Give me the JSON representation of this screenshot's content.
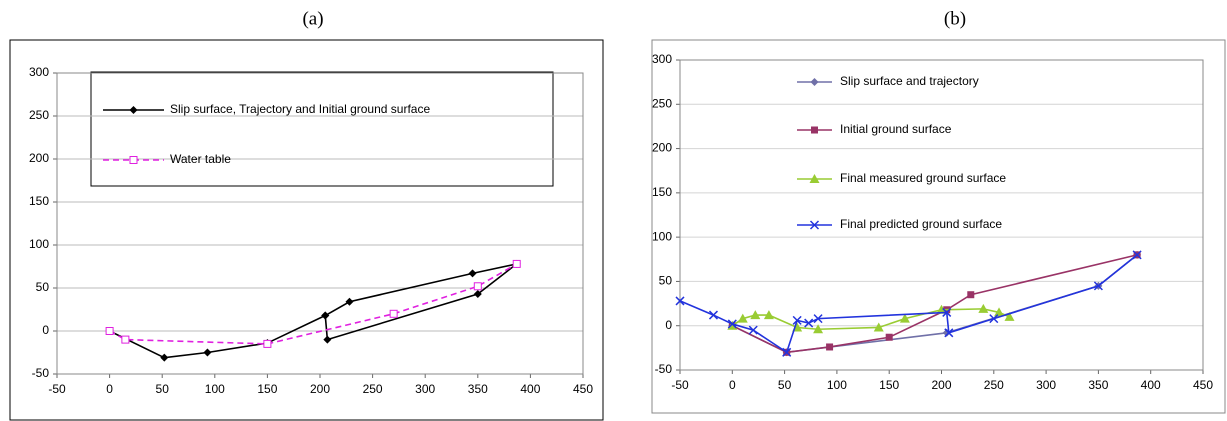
{
  "chart_data": [
    {
      "type": "line",
      "title": "(a)",
      "xlim": [
        -50,
        450
      ],
      "xticks": [
        -50,
        0,
        50,
        100,
        150,
        200,
        250,
        300,
        350,
        400,
        450
      ],
      "ylim": [
        -50,
        300
      ],
      "yticks": [
        -50,
        0,
        50,
        100,
        150,
        200,
        250,
        300
      ],
      "grid": true,
      "series": [
        {
          "name": "Slip surface, Trajectory and Initial ground surface",
          "color": "#000000",
          "marker": "diamond",
          "dash": false,
          "x": [
            0,
            52,
            93,
            150,
            205,
            207,
            350,
            387,
            345,
            228,
            205
          ],
          "values": [
            0,
            -31,
            -25,
            -14,
            18,
            -10,
            43,
            78,
            67,
            34,
            18
          ]
        },
        {
          "name": "Water table",
          "color": "#e020e0",
          "marker": "open-square",
          "dash": true,
          "x": [
            0,
            15,
            150,
            270,
            350,
            387
          ],
          "values": [
            0,
            -10,
            -15,
            20,
            52,
            78
          ]
        }
      ]
    },
    {
      "type": "line",
      "title": "(b)",
      "xlim": [
        -50,
        450
      ],
      "xticks": [
        -50,
        0,
        50,
        100,
        150,
        200,
        250,
        300,
        350,
        400,
        450
      ],
      "ylim": [
        -50,
        300
      ],
      "yticks": [
        -50,
        0,
        50,
        100,
        150,
        200,
        250,
        300
      ],
      "grid": true,
      "series": [
        {
          "name": "Slip surface and trajectory",
          "color": "#7070a8",
          "marker": "diamond",
          "dash": false,
          "x": [
            0,
            52,
            205,
            350,
            387
          ],
          "values": [
            0,
            -30,
            -8,
            45,
            80
          ]
        },
        {
          "name": "Initial ground surface",
          "color": "#993366",
          "marker": "square",
          "dash": false,
          "x": [
            0,
            52,
            93,
            150,
            205,
            228,
            387
          ],
          "values": [
            0,
            -30,
            -24,
            -13,
            18,
            35,
            80
          ]
        },
        {
          "name": "Final measured ground surface",
          "color": "#99cc33",
          "marker": "triangle",
          "dash": false,
          "x": [
            0,
            10,
            22,
            35,
            62,
            82,
            140,
            165,
            200,
            240,
            255,
            265
          ],
          "values": [
            0,
            8,
            12,
            12,
            -2,
            -4,
            -2,
            8,
            18,
            19,
            15,
            10
          ]
        },
        {
          "name": "Final predicted ground surface",
          "color": "#2233dd",
          "marker": "x",
          "dash": false,
          "x": [
            -50,
            -18,
            0,
            20,
            52,
            62,
            73,
            82,
            205,
            207,
            250,
            350,
            387
          ],
          "values": [
            28,
            12,
            2,
            -5,
            -30,
            6,
            3,
            8,
            15,
            -8,
            8,
            45,
            80
          ]
        }
      ]
    }
  ]
}
